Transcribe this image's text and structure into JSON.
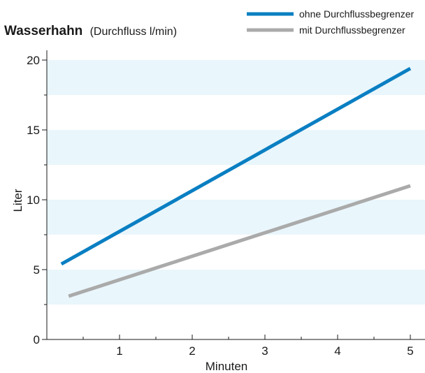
{
  "chart_data": {
    "type": "line",
    "title": "Wasserhahn",
    "subtitle": "(Durchfluss l/min)",
    "xlabel": "Minuten",
    "ylabel": "Liter",
    "xlim": [
      0,
      5
    ],
    "ylim": [
      0,
      20
    ],
    "x_ticks": [
      "1",
      "2",
      "3",
      "4",
      "5"
    ],
    "y_ticks": [
      "0",
      "5",
      "10",
      "15",
      "20"
    ],
    "legend_position": "top-right",
    "band_color": "#e9f6fc",
    "series": [
      {
        "name": "ohne Durchflussbegrenzer",
        "color": "#0a7fc2",
        "x": [
          0.2,
          5
        ],
        "y": [
          5.4,
          19.4
        ]
      },
      {
        "name": "mit Durchflussbegrenzer",
        "color": "#aaaaaa",
        "x": [
          0.3,
          5
        ],
        "y": [
          3.1,
          11
        ]
      }
    ]
  }
}
